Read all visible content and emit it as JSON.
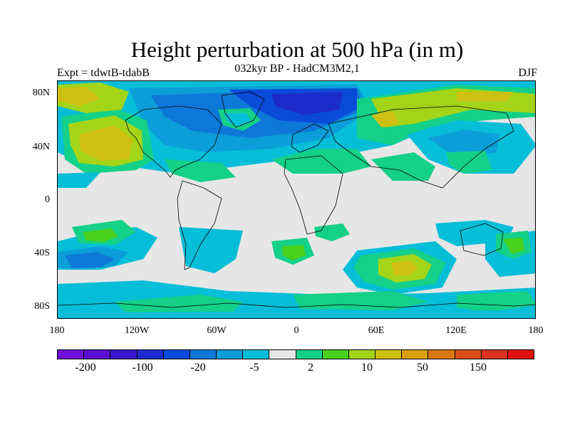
{
  "title": "Height perturbation at 500 hPa (in m)",
  "subtitle": "032kyr BP - HadCM3M2,1",
  "left_label": "Expt = tdwtB-tdabB",
  "right_label": "DJF",
  "lat_ticks": [
    "80N",
    "40N",
    "0",
    "40S",
    "80S"
  ],
  "lon_ticks": [
    "180",
    "120W",
    "60W",
    "0",
    "60E",
    "120E",
    "180"
  ],
  "colorbar": {
    "colors": [
      "#7010d8",
      "#5a0ed0",
      "#3818c8",
      "#1c2ccc",
      "#0a4ad8",
      "#0e78d8",
      "#0b9ed8",
      "#06bed8",
      "#e6e6e6",
      "#14d088",
      "#48d01c",
      "#a4d418",
      "#cec010",
      "#d8a010",
      "#d87810",
      "#d85018",
      "#dc3020",
      "#e01010"
    ],
    "labels": [
      "-200",
      "-100",
      "-20",
      "-5",
      "2",
      "10",
      "50",
      "150"
    ]
  },
  "colors": {
    "neutral": "#e6e6e6",
    "light_blue": "#06bed8",
    "mid_blue": "#0b9ed8",
    "blue": "#0e78d8",
    "deep_blue": "#0a4ad8",
    "navy": "#1c2ccc",
    "teal_green": "#14d088",
    "green": "#48d01c",
    "yellow_green": "#a4d418",
    "olive": "#cec010"
  }
}
